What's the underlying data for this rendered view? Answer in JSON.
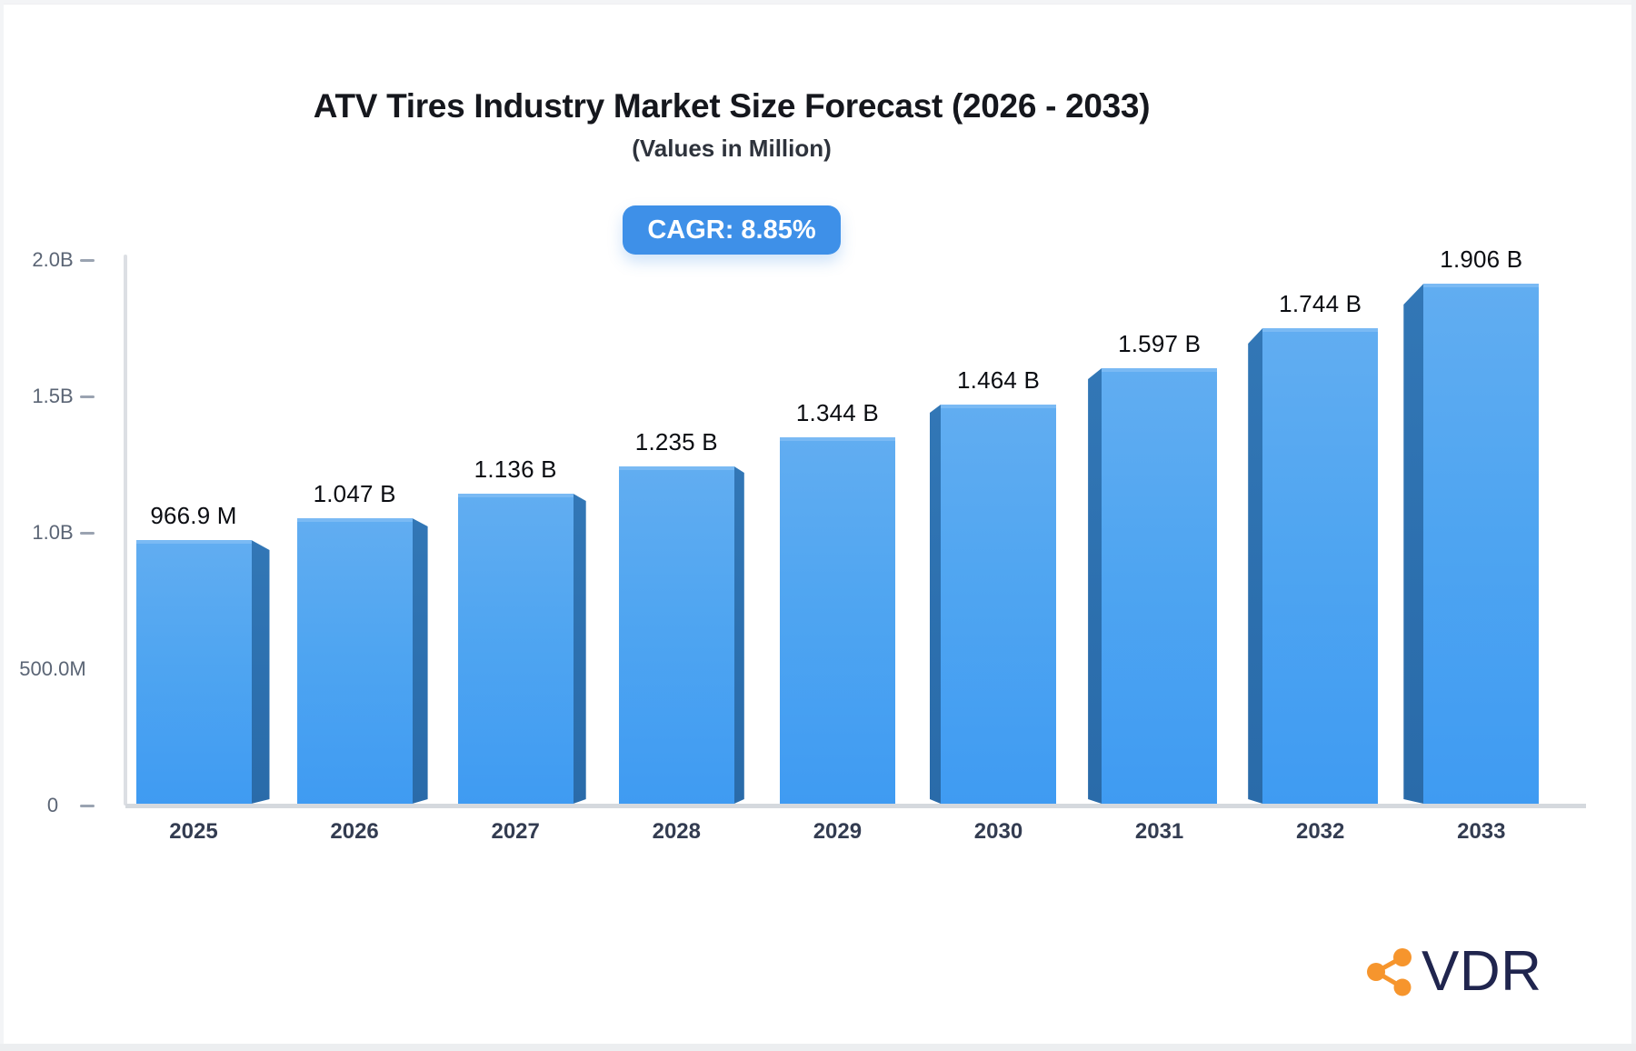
{
  "header": {
    "title": "ATV Tires Industry Market Size Forecast (2026 - 2033)",
    "subtitle": "(Values in Million)",
    "cagr_badge": "CAGR: 8.85%"
  },
  "logo": {
    "brand": "VDR",
    "icon": "share-network-icon",
    "icon_color": "#F6952D",
    "text_color": "#20254E"
  },
  "colors": {
    "bar_face": "#4AA1F1",
    "bar_face_highlight": "#7ABAF4",
    "bar_side": "#2D6FAD",
    "badge_bg": "#3E90E8",
    "axis_line": "#D5D9DE",
    "tick_label": "#5B6575",
    "category_label": "#333C51",
    "value_label": "#0B0D12"
  },
  "chart_data": {
    "type": "bar",
    "title": "ATV Tires Industry Market Size Forecast (2026 - 2033)",
    "subtitle": "(Values in Million)",
    "annotation": "CAGR: 8.85%",
    "categories": [
      "2025",
      "2026",
      "2027",
      "2028",
      "2029",
      "2030",
      "2031",
      "2032",
      "2033"
    ],
    "value_labels": [
      "966.9 M",
      "1.047 B",
      "1.136 B",
      "1.235 B",
      "1.344 B",
      "1.464 B",
      "1.597 B",
      "1.744 B",
      "1.906 B"
    ],
    "values_billions": [
      0.9669,
      1.047,
      1.136,
      1.235,
      1.344,
      1.464,
      1.597,
      1.744,
      1.906
    ],
    "xlabel": "",
    "ylabel": "",
    "ylim_billions": [
      0,
      2.0
    ],
    "grid": false,
    "legend": false,
    "style": "3d-perspective-bars",
    "yaxis_ticks": [
      {
        "label": "2.0B",
        "value_b": 2.0,
        "dash": true
      },
      {
        "label": "1.5B",
        "value_b": 1.5,
        "dash": true
      },
      {
        "label": "1.0B",
        "value_b": 1.0,
        "dash": true
      },
      {
        "label": "500.0M",
        "value_b": 0.5,
        "dash": false
      },
      {
        "label": "0",
        "value_b": 0.0,
        "dash": true
      }
    ]
  }
}
